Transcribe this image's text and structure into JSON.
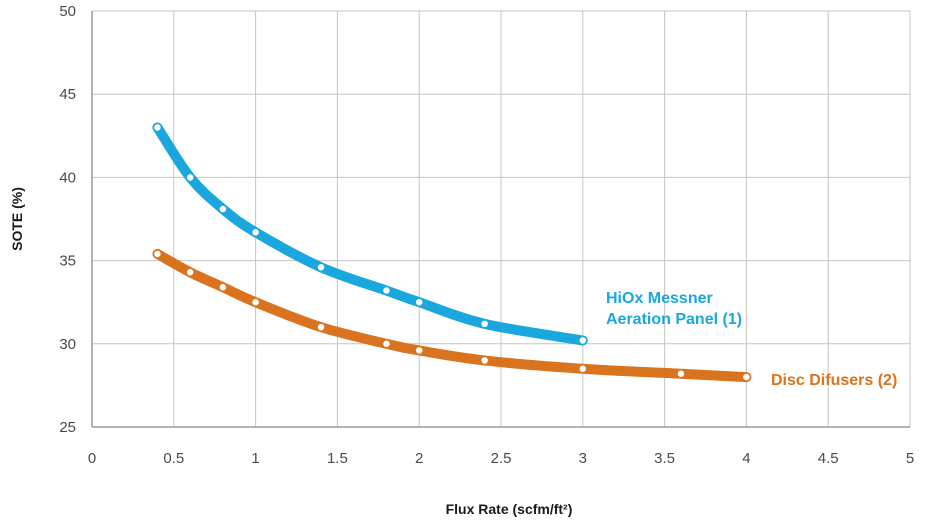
{
  "chart_data": {
    "type": "line",
    "title": "",
    "xlabel": "Flux Rate (scfm/ft²)",
    "ylabel": "SOTE (%)",
    "xlim": [
      0,
      5
    ],
    "ylim": [
      25,
      50
    ],
    "xticks": [
      "0",
      "0.5",
      "1",
      "1.5",
      "2",
      "2.5",
      "3",
      "3.5",
      "4",
      "4.5",
      "5"
    ],
    "yticks": [
      "25",
      "30",
      "35",
      "40",
      "45",
      "50"
    ],
    "grid": true,
    "legend": "inline labels at line ends",
    "series": [
      {
        "name_lines": [
          "HiOx Messner",
          "Aeration Panel (1)"
        ],
        "color": "#1aa7de",
        "points": [
          [
            0.4,
            43.0
          ],
          [
            0.6,
            40.0
          ],
          [
            0.8,
            38.1
          ],
          [
            1.0,
            36.7
          ],
          [
            1.4,
            34.6
          ],
          [
            1.8,
            33.2
          ],
          [
            2.0,
            32.5
          ],
          [
            2.4,
            31.2
          ],
          [
            3.0,
            30.2
          ]
        ]
      },
      {
        "name_lines": [
          "Disc Difusers (2)"
        ],
        "color": "#d9731e",
        "points": [
          [
            0.4,
            35.4
          ],
          [
            0.6,
            34.3
          ],
          [
            0.8,
            33.4
          ],
          [
            1.0,
            32.5
          ],
          [
            1.4,
            31.0
          ],
          [
            1.8,
            30.0
          ],
          [
            2.0,
            29.6
          ],
          [
            2.4,
            29.0
          ],
          [
            3.0,
            28.5
          ],
          [
            3.6,
            28.2
          ],
          [
            4.0,
            28.0
          ]
        ]
      }
    ]
  }
}
